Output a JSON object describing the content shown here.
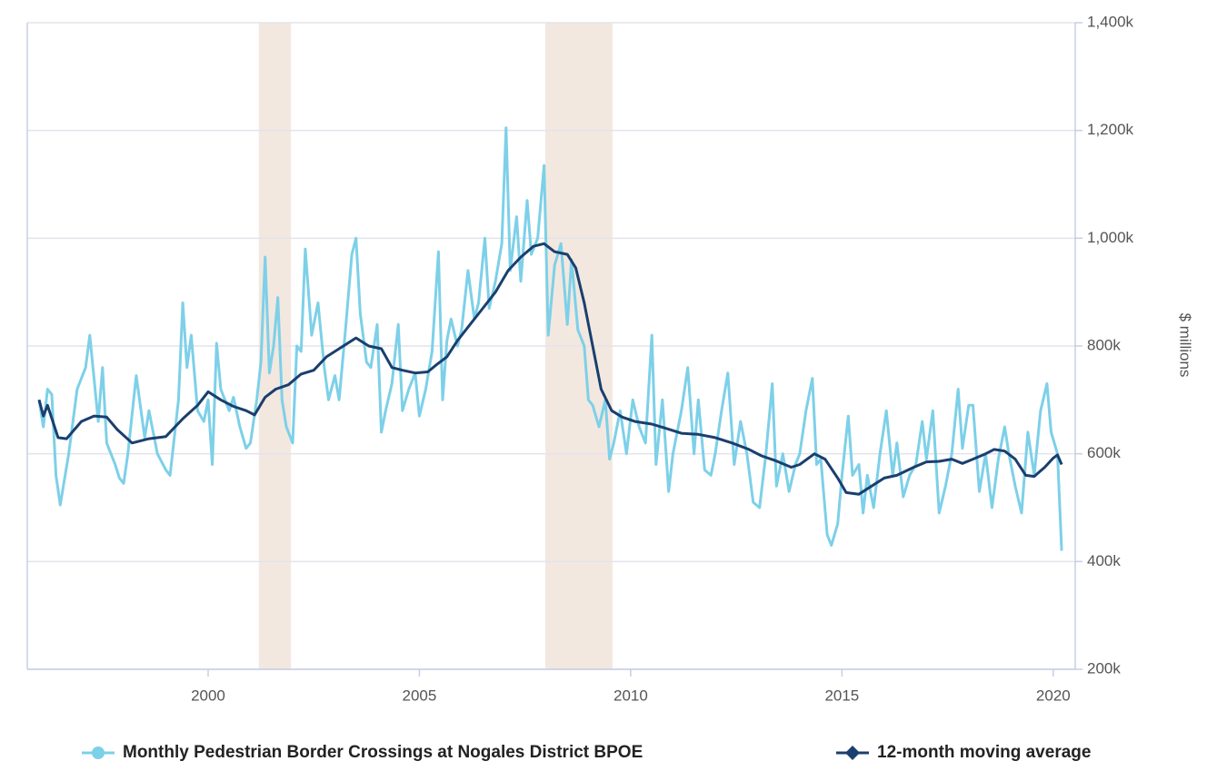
{
  "chart_data": {
    "type": "line",
    "y_label": "$ millions",
    "xlim": [
      1995.72,
      2020.52
    ],
    "xticks": [
      2000,
      2005,
      2010,
      2015,
      2020
    ],
    "ylim": [
      200,
      1400
    ],
    "yticks": [
      {
        "value": 200,
        "label": "200k"
      },
      {
        "value": 400,
        "label": "400k"
      },
      {
        "value": 600,
        "label": "600k"
      },
      {
        "value": 800,
        "label": "800k"
      },
      {
        "value": 1000,
        "label": "1,000k"
      },
      {
        "value": 1200,
        "label": "1,200k"
      },
      {
        "value": 1400,
        "label": "1,400k"
      }
    ],
    "grid": true,
    "y_axis_side": "right",
    "legend": "bottom",
    "recessions": [
      [
        2001.2,
        2001.96
      ],
      [
        2007.98,
        2009.57
      ]
    ],
    "recession_color": "#f2e8e0",
    "series": [
      {
        "name": "Monthly Pedestrian Border Crossings at Nogales District BPOE",
        "color": "#7dd0e8",
        "marker": "circle",
        "x": [
          1996.0,
          1996.1,
          1996.2,
          1996.3,
          1996.4,
          1996.5,
          1996.7,
          1996.9,
          1997.1,
          1997.2,
          1997.4,
          1997.5,
          1997.6,
          1997.8,
          1997.9,
          1998.0,
          1998.1,
          1998.3,
          1998.5,
          1998.6,
          1998.8,
          1999.0,
          1999.1,
          1999.3,
          1999.4,
          1999.5,
          1999.6,
          1999.75,
          1999.9,
          2000.0,
          2000.1,
          2000.2,
          2000.3,
          2000.5,
          2000.6,
          2000.75,
          2000.9,
          2001.0,
          2001.15,
          2001.25,
          2001.35,
          2001.45,
          2001.55,
          2001.65,
          2001.75,
          2001.85,
          2002.0,
          2002.1,
          2002.2,
          2002.3,
          2002.45,
          2002.6,
          2002.75,
          2002.85,
          2003.0,
          2003.1,
          2003.25,
          2003.4,
          2003.5,
          2003.6,
          2003.75,
          2003.85,
          2004.0,
          2004.1,
          2004.2,
          2004.35,
          2004.5,
          2004.6,
          2004.75,
          2004.9,
          2005.0,
          2005.15,
          2005.3,
          2005.45,
          2005.55,
          2005.65,
          2005.75,
          2005.9,
          2006.0,
          2006.15,
          2006.3,
          2006.4,
          2006.55,
          2006.65,
          2006.8,
          2006.95,
          2007.05,
          2007.15,
          2007.3,
          2007.4,
          2007.55,
          2007.65,
          2007.8,
          2007.95,
          2008.05,
          2008.2,
          2008.35,
          2008.5,
          2008.6,
          2008.75,
          2008.9,
          2009.0,
          2009.1,
          2009.25,
          2009.4,
          2009.5,
          2009.6,
          2009.75,
          2009.9,
          2010.05,
          2010.2,
          2010.35,
          2010.5,
          2010.6,
          2010.75,
          2010.9,
          2011.0,
          2011.2,
          2011.35,
          2011.5,
          2011.6,
          2011.75,
          2011.9,
          2012.0,
          2012.15,
          2012.3,
          2012.45,
          2012.6,
          2012.75,
          2012.9,
          2013.05,
          2013.2,
          2013.35,
          2013.45,
          2013.6,
          2013.75,
          2013.9,
          2014.0,
          2014.15,
          2014.3,
          2014.4,
          2014.5,
          2014.65,
          2014.75,
          2014.9,
          2015.0,
          2015.15,
          2015.25,
          2015.4,
          2015.5,
          2015.6,
          2015.75,
          2015.9,
          2016.05,
          2016.2,
          2016.3,
          2016.45,
          2016.6,
          2016.75,
          2016.9,
          2017.0,
          2017.15,
          2017.3,
          2017.45,
          2017.6,
          2017.75,
          2017.85,
          2018.0,
          2018.1,
          2018.25,
          2018.4,
          2018.55,
          2018.7,
          2018.85,
          2018.95,
          2019.1,
          2019.25,
          2019.4,
          2019.55,
          2019.7,
          2019.85,
          2019.95,
          2020.1,
          2020.2
        ],
        "values": [
          700,
          650,
          720,
          710,
          560,
          505,
          600,
          720,
          760,
          820,
          660,
          760,
          620,
          580,
          555,
          545,
          600,
          745,
          630,
          680,
          600,
          570,
          560,
          700,
          880,
          760,
          820,
          680,
          660,
          700,
          580,
          805,
          720,
          680,
          705,
          650,
          610,
          620,
          700,
          770,
          965,
          750,
          800,
          890,
          700,
          650,
          620,
          800,
          790,
          980,
          820,
          880,
          760,
          700,
          745,
          700,
          830,
          970,
          1000,
          860,
          770,
          760,
          840,
          640,
          680,
          730,
          840,
          680,
          720,
          750,
          670,
          720,
          790,
          975,
          700,
          810,
          850,
          800,
          830,
          940,
          850,
          880,
          1000,
          870,
          920,
          990,
          1205,
          940,
          1040,
          920,
          1070,
          970,
          1000,
          1135,
          820,
          950,
          990,
          840,
          960,
          830,
          800,
          700,
          690,
          650,
          700,
          590,
          620,
          680,
          600,
          700,
          650,
          620,
          820,
          580,
          700,
          530,
          600,
          680,
          760,
          600,
          700,
          570,
          560,
          600,
          680,
          750,
          580,
          660,
          600,
          510,
          500,
          600,
          730,
          540,
          600,
          530,
          580,
          600,
          680,
          740,
          580,
          590,
          450,
          430,
          470,
          560,
          670,
          560,
          580,
          490,
          560,
          500,
          600,
          680,
          560,
          620,
          520,
          560,
          580,
          660,
          590,
          680,
          490,
          540,
          600,
          720,
          610,
          690,
          690,
          530,
          600,
          500,
          590,
          650,
          600,
          540,
          490,
          640,
          560,
          680,
          730,
          640,
          600,
          420
        ]
      },
      {
        "name": "12-month moving average",
        "color": "#1a3f6e",
        "marker": "diamond",
        "x": [
          1996.0,
          1996.1,
          1996.2,
          1996.45,
          1996.65,
          1997.0,
          1997.3,
          1997.6,
          1997.85,
          1998.2,
          1998.6,
          1999.0,
          1999.4,
          1999.75,
          2000.0,
          2000.3,
          2000.6,
          2000.9,
          2001.1,
          2001.35,
          2001.6,
          2001.9,
          2002.2,
          2002.5,
          2002.8,
          2003.1,
          2003.5,
          2003.8,
          2004.1,
          2004.35,
          2004.6,
          2004.9,
          2005.2,
          2005.4,
          2005.65,
          2005.9,
          2006.2,
          2006.5,
          2006.8,
          2007.1,
          2007.4,
          2007.7,
          2007.95,
          2008.2,
          2008.5,
          2008.7,
          2008.9,
          2009.1,
          2009.3,
          2009.55,
          2009.8,
          2010.1,
          2010.5,
          2010.8,
          2011.2,
          2011.6,
          2012.0,
          2012.4,
          2012.8,
          2013.1,
          2013.4,
          2013.8,
          2014.0,
          2014.35,
          2014.6,
          2014.9,
          2015.1,
          2015.4,
          2015.7,
          2016.0,
          2016.3,
          2016.7,
          2017.0,
          2017.3,
          2017.6,
          2017.85,
          2018.1,
          2018.4,
          2018.6,
          2018.85,
          2019.1,
          2019.35,
          2019.55,
          2019.8,
          2020.0,
          2020.1,
          2020.2
        ],
        "values": [
          700,
          670,
          690,
          630,
          628,
          660,
          670,
          668,
          645,
          620,
          628,
          632,
          665,
          690,
          715,
          700,
          688,
          680,
          672,
          705,
          720,
          728,
          748,
          755,
          780,
          795,
          815,
          800,
          795,
          760,
          755,
          750,
          752,
          765,
          780,
          810,
          840,
          870,
          900,
          940,
          965,
          985,
          990,
          975,
          970,
          945,
          880,
          800,
          720,
          680,
          668,
          660,
          655,
          648,
          638,
          636,
          630,
          620,
          608,
          596,
          588,
          575,
          580,
          600,
          590,
          555,
          528,
          525,
          540,
          555,
          560,
          575,
          585,
          586,
          590,
          582,
          590,
          600,
          608,
          605,
          590,
          560,
          558,
          575,
          592,
          598,
          580
        ]
      }
    ]
  }
}
